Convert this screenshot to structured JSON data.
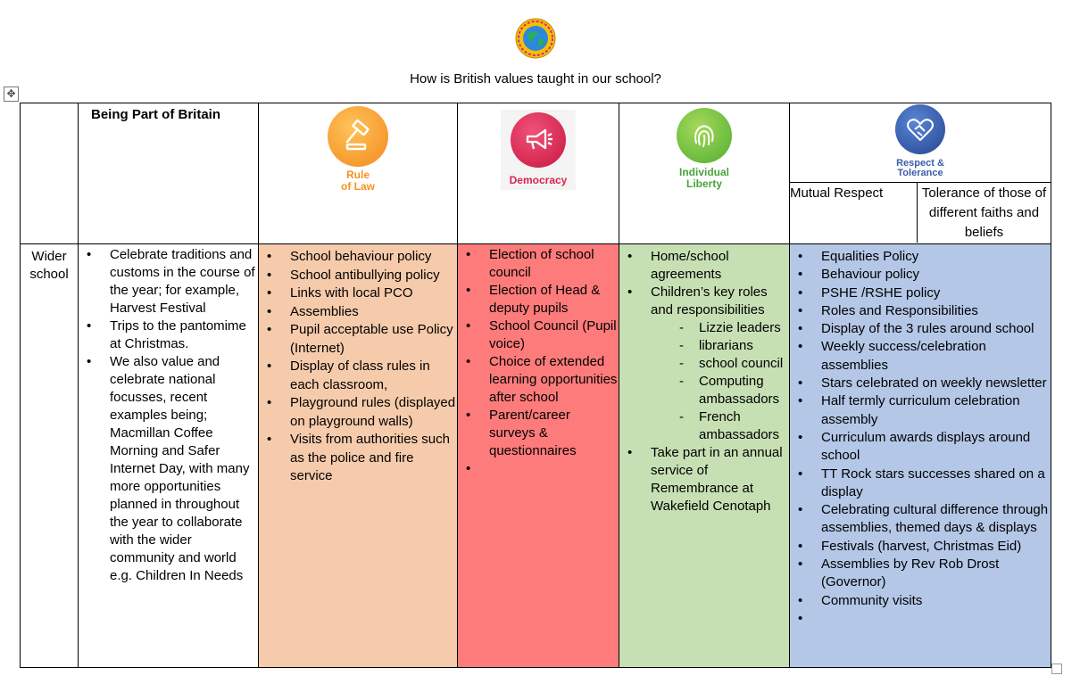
{
  "logo": {
    "name": "school-globe-logo",
    "ring_text": "PRIMARY SCHOOL"
  },
  "document": {
    "title": "How is British values taught in our school?"
  },
  "table": {
    "header": {
      "first_column": "Being Part of Britain",
      "values": [
        {
          "key": "rule_of_law",
          "icon": "gavel-icon",
          "label_line1": "Rule",
          "label_line2": "of Law",
          "color": "#f7931e",
          "label_color": "#f7931e"
        },
        {
          "key": "democracy",
          "icon": "megaphone-icon",
          "label_line1": "Democracy",
          "label_line2": "",
          "color": "#d9254c",
          "label_color": "#d9254c"
        },
        {
          "key": "individual_liberty",
          "icon": "fingerprint-icon",
          "label_line1": "Individual",
          "label_line2": "Liberty",
          "color": "#6cbe45",
          "label_color": "#4aa33a"
        },
        {
          "key": "respect_tolerance",
          "icon": "handshake-heart-icon",
          "label_line1": "Respect &",
          "label_line2": "Tolerance",
          "color": "#3b63b0",
          "label_color": "#3b5ea8"
        }
      ],
      "sub_headers": {
        "mutual_respect": "Mutual Respect",
        "tolerance": "Tolerance of those of different faiths and beliefs"
      }
    },
    "row": {
      "label_line1": "Wider",
      "label_line2": "school",
      "being_part_of_britain": [
        "Celebrate traditions and customs in the course of the year; for example, Harvest Festival",
        "Trips to the pantomime at Christmas.",
        "We also value and celebrate national focusses, recent examples being; Macmillan Coffee Morning and Safer Internet Day, with many more opportunities planned in throughout the year to collaborate with the wider community and world e.g. Children In Needs"
      ],
      "rule_of_law": [
        "School behaviour policy",
        "School antibullying policy",
        "Links with local PCO",
        "Assemblies",
        "Pupil acceptable use Policy (Internet)",
        "Display of class rules in each classroom,",
        "Playground rules (displayed on playground walls)",
        "Visits from authorities such as the police and fire service"
      ],
      "democracy": [
        "Election of school council",
        "Election of Head & deputy pupils",
        "School Council (Pupil voice)",
        "Choice of extended learning opportunities after school",
        "Parent/career surveys & questionnaires",
        ""
      ],
      "individual_liberty": {
        "item1": "Home/school agreements",
        "item2": "Children’s key roles and responsibilities",
        "roles": [
          "Lizzie leaders",
          "librarians",
          "school council",
          "Computing ambassadors",
          "French ambassadors"
        ],
        "item3": "Take part in an annual service of Remembrance at Wakefield Cenotaph"
      },
      "respect_tolerance": [
        "Equalities Policy",
        "Behaviour policy",
        "PSHE /RSHE policy",
        "Roles and Responsibilities",
        "Display of the 3 rules around school",
        "Weekly success/celebration assemblies",
        "Stars celebrated on weekly newsletter",
        "Half termly curriculum celebration assembly",
        "Curriculum awards displays around school",
        "TT Rock stars successes shared on a display",
        "Celebrating cultural difference through assemblies, themed days & displays",
        "Festivals (harvest, Christmas Eid)",
        "Assemblies by Rev Rob Drost (Governor)",
        "Community visits",
        ""
      ]
    }
  }
}
